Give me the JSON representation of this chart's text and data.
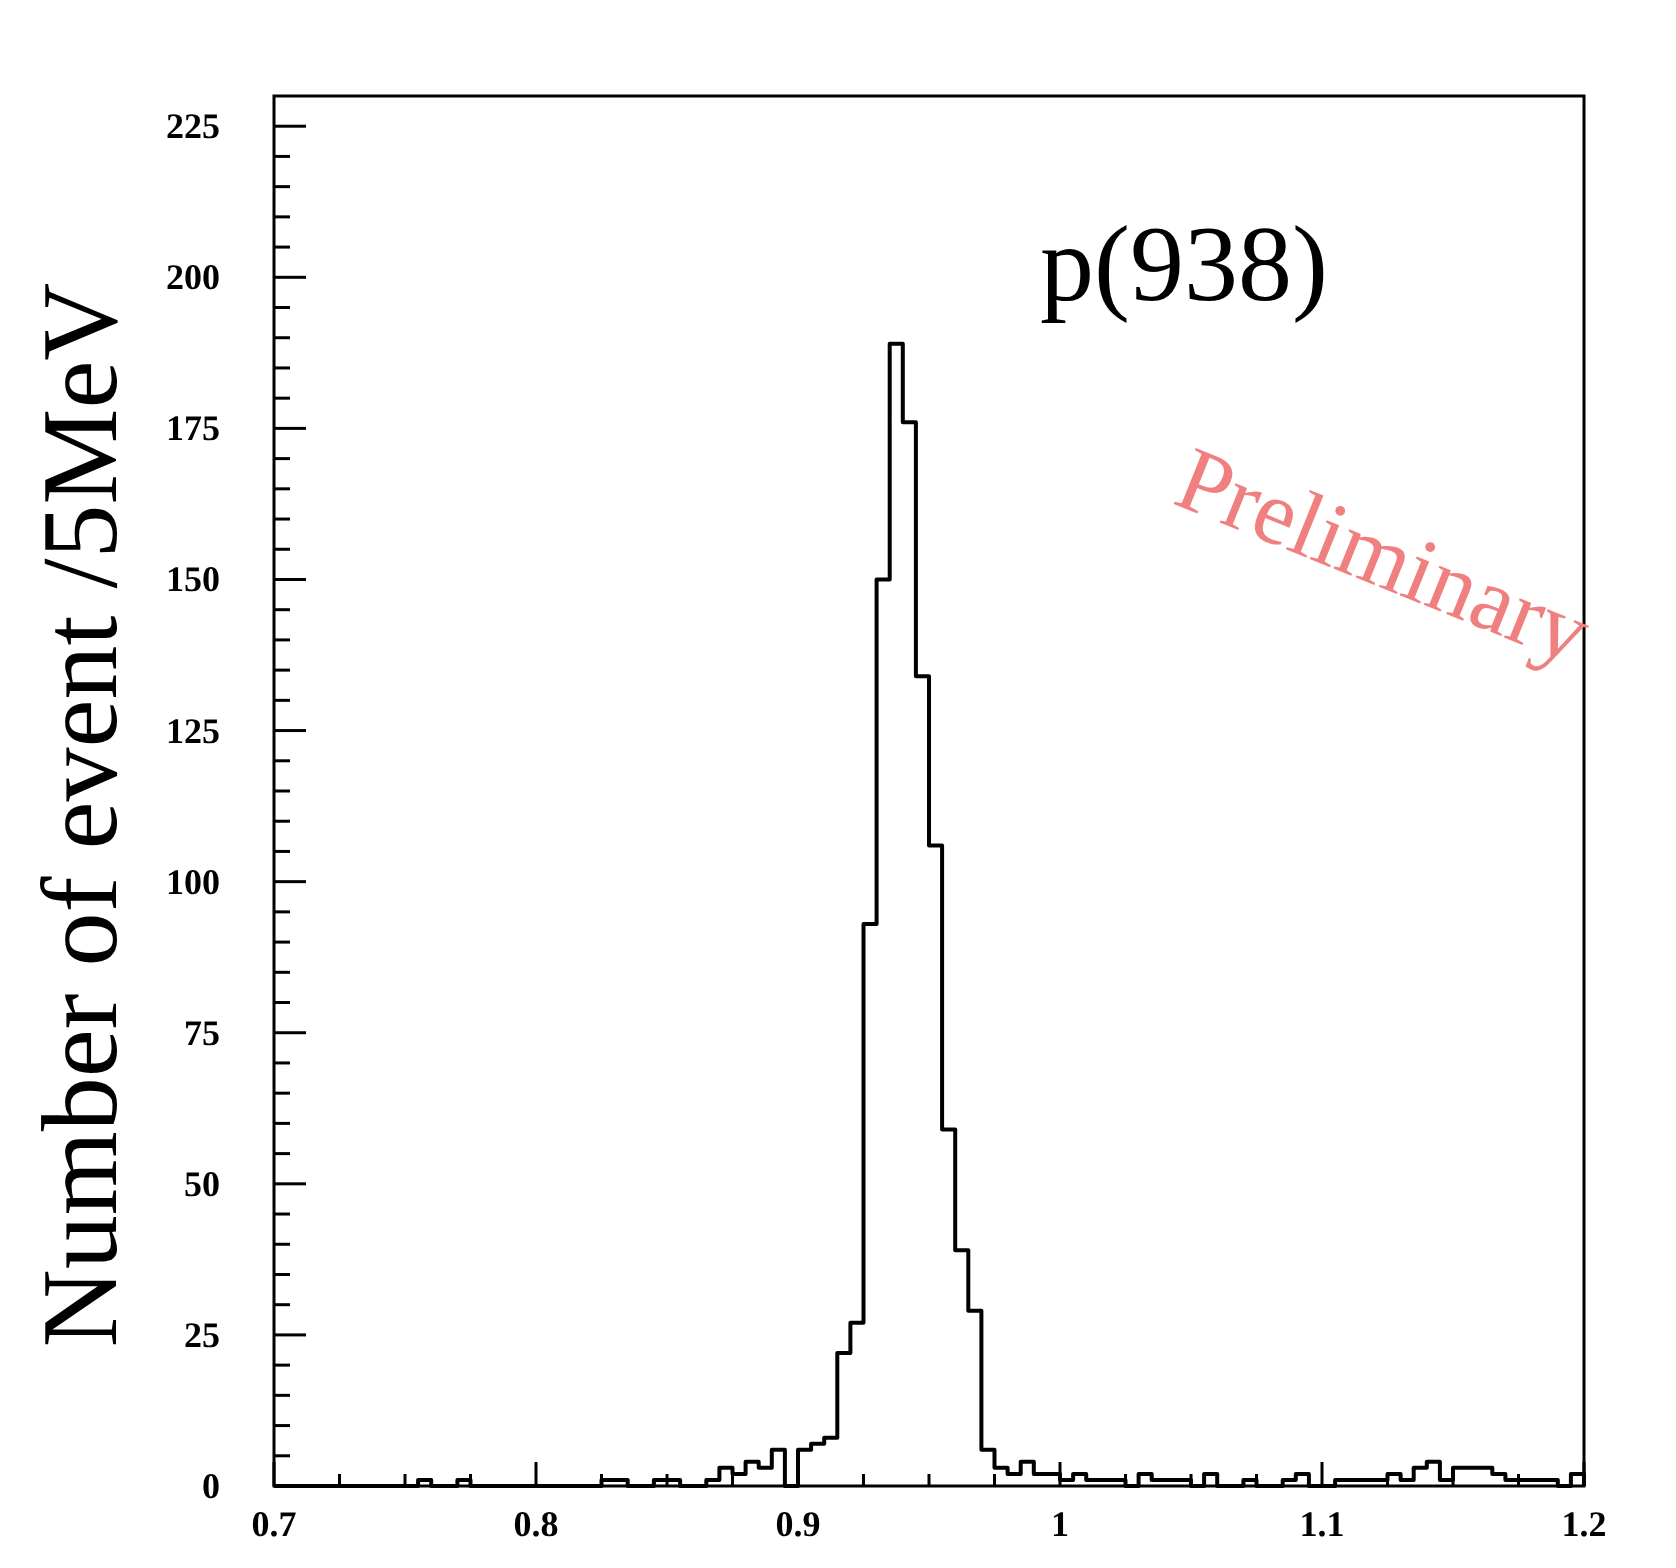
{
  "chart_data": {
    "type": "histogram",
    "ylabel": "Number of event /5MeV",
    "color": "#000000",
    "annotations": [
      "p(938)",
      "Preliminary"
    ],
    "bins": [
      0.7,
      0.705,
      0.71,
      0.715,
      0.72,
      0.725,
      0.73,
      0.735,
      0.74,
      0.745,
      0.75,
      0.755,
      0.76,
      0.765,
      0.77,
      0.775,
      0.78,
      0.785,
      0.79,
      0.795,
      0.8,
      0.805,
      0.81,
      0.815,
      0.82,
      0.825,
      0.83,
      0.835,
      0.84,
      0.845,
      0.85,
      0.855,
      0.86,
      0.865,
      0.87,
      0.875,
      0.88,
      0.885,
      0.89,
      0.895,
      0.9,
      0.905,
      0.91,
      0.915,
      0.92,
      0.925,
      0.93,
      0.935,
      0.94,
      0.945,
      0.95,
      0.955,
      0.96,
      0.965,
      0.97,
      0.975,
      0.98,
      0.985,
      0.99,
      0.995,
      1.0,
      1.005,
      1.01,
      1.015,
      1.02,
      1.025,
      1.03,
      1.035,
      1.04,
      1.045,
      1.05,
      1.055,
      1.06,
      1.065,
      1.07,
      1.075,
      1.08,
      1.085,
      1.09,
      1.095,
      1.1,
      1.105,
      1.11,
      1.115,
      1.12,
      1.125,
      1.13,
      1.135,
      1.14,
      1.145,
      1.15,
      1.155,
      1.16,
      1.165,
      1.17,
      1.175,
      1.18,
      1.185,
      1.19,
      1.195,
      1.2
    ],
    "values": [
      0,
      0,
      0,
      0,
      0,
      0,
      0,
      0,
      0,
      0,
      0,
      1,
      0,
      0,
      1,
      0,
      0,
      0,
      0,
      0,
      0,
      0,
      0,
      0,
      0,
      1,
      1,
      0,
      0,
      1,
      1,
      0,
      0,
      1,
      3,
      2,
      4,
      3,
      6,
      0,
      6,
      7,
      8,
      22,
      27,
      93,
      150,
      189,
      176,
      134,
      106,
      59,
      39,
      29,
      6,
      3,
      2,
      4,
      2,
      2,
      1,
      2,
      1,
      1,
      1,
      0,
      2,
      1,
      1,
      1,
      0,
      2,
      0,
      0,
      1,
      0,
      0,
      1,
      2,
      0,
      0,
      1,
      1,
      1,
      1,
      2,
      1,
      3,
      4,
      1,
      3,
      3,
      3,
      2,
      1,
      1,
      1,
      1,
      0,
      2
    ],
    "xlim": [
      0.7,
      1.2
    ],
    "xticks": [
      {
        "value": 0.7,
        "label": "0.7"
      },
      {
        "value": 0.725,
        "label": null
      },
      {
        "value": 0.75,
        "label": null
      },
      {
        "value": 0.775,
        "label": null
      },
      {
        "value": 0.8,
        "label": "0.8"
      },
      {
        "value": 0.825,
        "label": null
      },
      {
        "value": 0.85,
        "label": null
      },
      {
        "value": 0.875,
        "label": null
      },
      {
        "value": 0.9,
        "label": "0.9"
      },
      {
        "value": 0.925,
        "label": null
      },
      {
        "value": 0.95,
        "label": null
      },
      {
        "value": 0.975,
        "label": null
      },
      {
        "value": 1,
        "label": "1"
      },
      {
        "value": 1.025,
        "label": null
      },
      {
        "value": 1.05,
        "label": null
      },
      {
        "value": 1.075,
        "label": null
      },
      {
        "value": 1.1,
        "label": "1.1"
      },
      {
        "value": 1.125,
        "label": null
      },
      {
        "value": 1.15,
        "label": null
      },
      {
        "value": 1.175,
        "label": null
      },
      {
        "value": 1.2,
        "label": "1.2"
      }
    ],
    "ylim": [
      0,
      230
    ],
    "yticks": [
      0,
      {
        "value": 5,
        "label": null
      },
      {
        "value": 10,
        "label": null
      },
      {
        "value": 15,
        "label": null
      },
      {
        "value": 20,
        "label": null
      },
      25,
      {
        "value": 30,
        "label": null
      },
      {
        "value": 35,
        "label": null
      },
      {
        "value": 40,
        "label": null
      },
      {
        "value": 45,
        "label": null
      },
      50,
      {
        "value": 55,
        "label": null
      },
      {
        "value": 60,
        "label": null
      },
      {
        "value": 65,
        "label": null
      },
      {
        "value": 70,
        "label": null
      },
      75,
      {
        "value": 80,
        "label": null
      },
      {
        "value": 85,
        "label": null
      },
      {
        "value": 90,
        "label": null
      },
      {
        "value": 95,
        "label": null
      },
      100,
      {
        "value": 105,
        "label": null
      },
      {
        "value": 110,
        "label": null
      },
      {
        "value": 115,
        "label": null
      },
      {
        "value": 120,
        "label": null
      },
      125,
      {
        "value": 130,
        "label": null
      },
      {
        "value": 135,
        "label": null
      },
      {
        "value": 140,
        "label": null
      },
      {
        "value": 145,
        "label": null
      },
      150,
      {
        "value": 155,
        "label": null
      },
      {
        "value": 160,
        "label": null
      },
      {
        "value": 165,
        "label": null
      },
      {
        "value": 170,
        "label": null
      },
      175,
      {
        "value": 180,
        "label": null
      },
      {
        "value": 185,
        "label": null
      },
      {
        "value": 190,
        "label": null
      },
      {
        "value": 195,
        "label": null
      },
      200,
      {
        "value": 205,
        "label": null
      },
      {
        "value": 210,
        "label": null
      },
      {
        "value": 215,
        "label": null
      },
      {
        "value": 220,
        "label": null
      },
      225
    ],
    "grid": false
  }
}
